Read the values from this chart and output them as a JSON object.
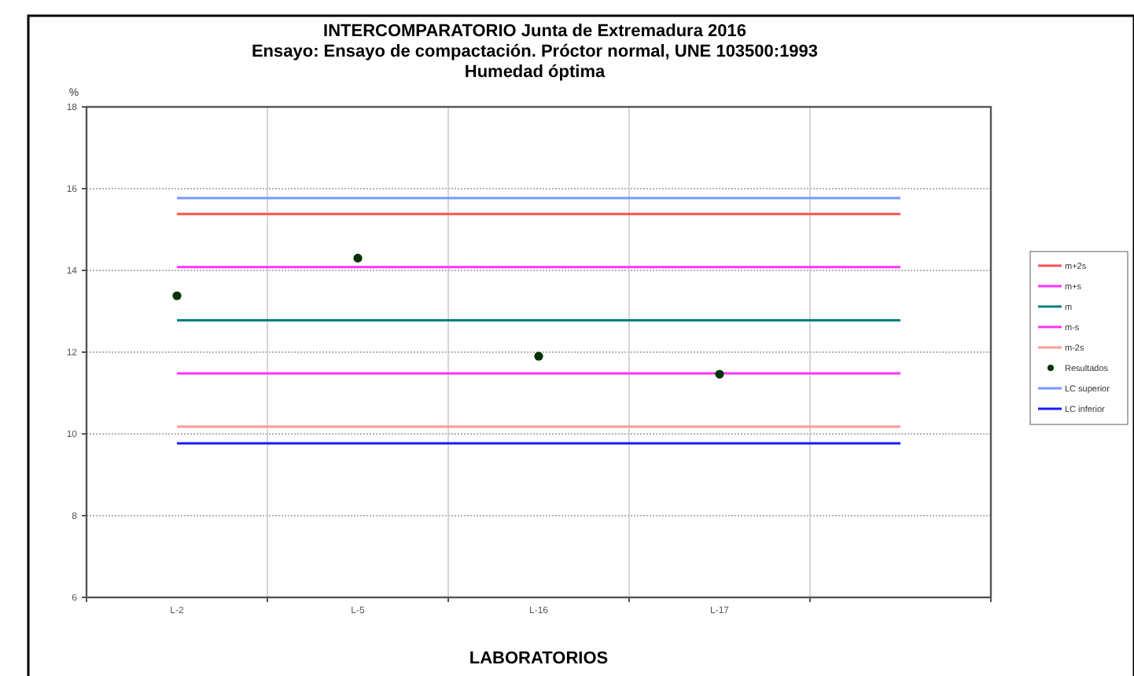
{
  "chart_data": {
    "type": "line",
    "title": "INTERCOMPARATORIO Junta de Extremadura 2016",
    "subtitle": "Ensayo: Ensayo de compactación. Próctor normal, UNE 103500:1993\nHumedad óptima",
    "xlabel": "LABORATORIOS",
    "ylabel": "%",
    "categories": [
      "L-2",
      "L-5",
      "L-16",
      "L-17",
      null
    ],
    "ylim": [
      6,
      18
    ],
    "yticks": [
      6,
      8,
      10,
      12,
      14,
      16,
      18
    ],
    "grid": true,
    "legend": "right",
    "line_style": "solid",
    "series": [
      {
        "name": "m+2s",
        "color": "#ff5050",
        "marker": "none",
        "values": [
          15.38,
          15.38,
          15.38,
          15.38,
          15.38
        ]
      },
      {
        "name": "m+s",
        "color": "#ff33ff",
        "marker": "none",
        "values": [
          14.08,
          14.08,
          14.08,
          14.08,
          14.08
        ]
      },
      {
        "name": "m",
        "color": "#008080",
        "marker": "none",
        "values": [
          12.78,
          12.78,
          12.78,
          12.78,
          12.78
        ]
      },
      {
        "name": "m-s",
        "color": "#ff33ff",
        "marker": "none",
        "values": [
          11.48,
          11.48,
          11.48,
          11.48,
          11.48
        ]
      },
      {
        "name": "m-2s",
        "color": "#ff9999",
        "marker": "none",
        "values": [
          10.18,
          10.18,
          10.18,
          10.18,
          10.18
        ]
      },
      {
        "name": "Resultados",
        "type": "scatter",
        "color": "#003300",
        "marker": "circle",
        "values": [
          13.38,
          14.3,
          11.9,
          11.46,
          null
        ]
      },
      {
        "name": "LC superior",
        "color": "#7799ff",
        "marker": "none",
        "values": [
          15.77,
          15.77,
          15.77,
          15.77,
          15.77
        ]
      },
      {
        "name": "LC inferior",
        "color": "#1a1aff",
        "marker": "none",
        "values": [
          9.77,
          9.77,
          9.77,
          9.77,
          9.77
        ]
      }
    ]
  }
}
